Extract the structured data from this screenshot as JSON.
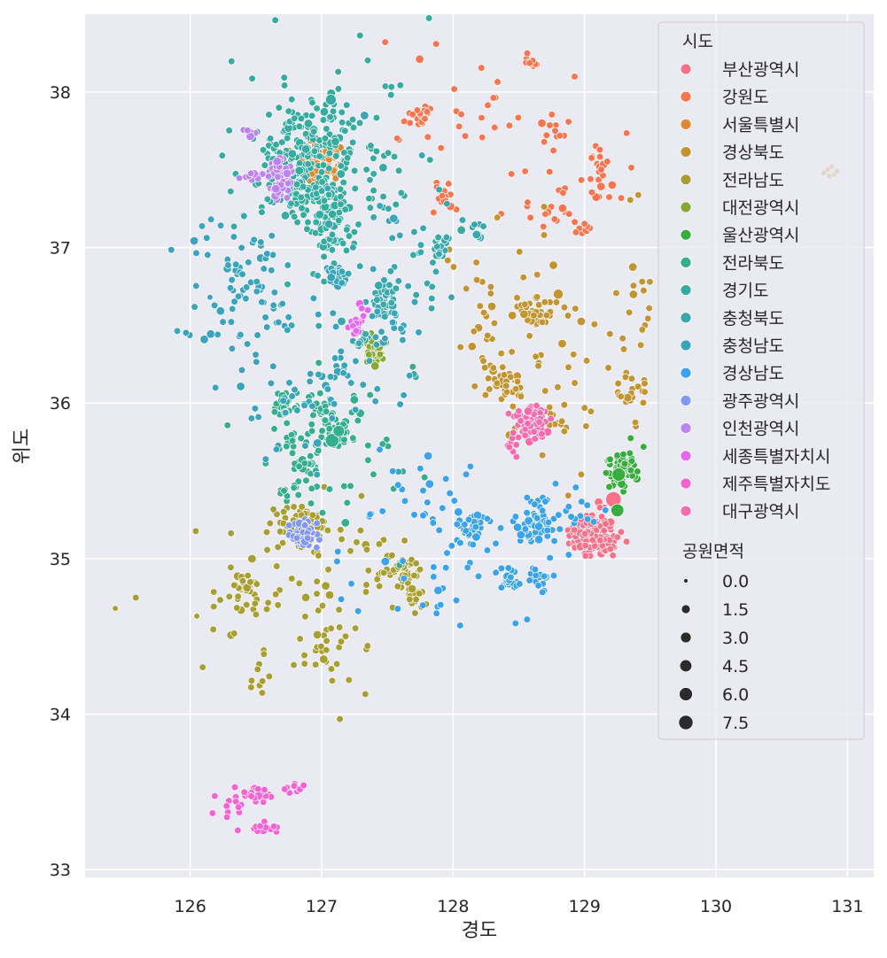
{
  "chart_data": {
    "type": "scatter",
    "title": "",
    "xlabel": "경도",
    "ylabel": "위도",
    "xlim": [
      125.2,
      131.2
    ],
    "ylim": [
      32.95,
      38.5
    ],
    "x_ticks": [
      126,
      127,
      128,
      129,
      130,
      131
    ],
    "y_ticks": [
      33,
      34,
      35,
      36,
      37,
      38
    ],
    "grid": true,
    "legend_position": "top-right",
    "hue": {
      "title": "시도",
      "entries": [
        {
          "name": "부산광역시",
          "color": "#f77189"
        },
        {
          "name": "강원도",
          "color": "#f7754f"
        },
        {
          "name": "서울특별시",
          "color": "#dc8932"
        },
        {
          "name": "경상북도",
          "color": "#c39532"
        },
        {
          "name": "전라남도",
          "color": "#a89f32"
        },
        {
          "name": "대전광역시",
          "color": "#86a932"
        },
        {
          "name": "울산광역시",
          "color": "#36ad3d"
        },
        {
          "name": "전라북도",
          "color": "#34ae8e"
        },
        {
          "name": "경기도",
          "color": "#36ab9f"
        },
        {
          "name": "충청북도",
          "color": "#38a8ad"
        },
        {
          "name": "충청남도",
          "color": "#39a4bb"
        },
        {
          "name": "경상남도",
          "color": "#3ba3ec"
        },
        {
          "name": "광주광역시",
          "color": "#8197f4"
        },
        {
          "name": "인천광역시",
          "color": "#bb83f4"
        },
        {
          "name": "세종특별자치시",
          "color": "#e866f4"
        },
        {
          "name": "제주특별자치도",
          "color": "#f563d3"
        },
        {
          "name": "대구광역시",
          "color": "#f66bad"
        }
      ]
    },
    "size": {
      "title": "공원면적",
      "values": [
        "0.0",
        "1.5",
        "3.0",
        "4.5",
        "6.0",
        "7.5"
      ]
    },
    "series": [
      {
        "name": "부산광역시",
        "clusters": [
          {
            "x": 129.07,
            "y": 35.16,
            "sx": 0.09,
            "sy": 0.07,
            "n": 150
          }
        ],
        "large": [
          {
            "x": 129.22,
            "y": 35.38,
            "size": 7.5
          }
        ]
      },
      {
        "name": "강원도",
        "clusters": [
          {
            "x": 128.6,
            "y": 38.19,
            "sx": 0.03,
            "sy": 0.02,
            "n": 12
          },
          {
            "x": 127.75,
            "y": 37.87,
            "sx": 0.05,
            "sy": 0.03,
            "n": 20
          },
          {
            "x": 129.1,
            "y": 37.5,
            "sx": 0.05,
            "sy": 0.08,
            "n": 20
          },
          {
            "x": 128.3,
            "y": 37.8,
            "sx": 0.4,
            "sy": 0.3,
            "n": 35
          },
          {
            "x": 128.8,
            "y": 37.25,
            "sx": 0.15,
            "sy": 0.05,
            "n": 18
          },
          {
            "x": 129.0,
            "y": 37.13,
            "sx": 0.04,
            "sy": 0.04,
            "n": 8
          },
          {
            "x": 127.95,
            "y": 37.33,
            "sx": 0.05,
            "sy": 0.05,
            "n": 12
          },
          {
            "x": 128.8,
            "y": 37.75,
            "sx": 0.04,
            "sy": 0.06,
            "n": 10
          }
        ],
        "large": []
      },
      {
        "name": "서울특별시",
        "clusters": [
          {
            "x": 126.98,
            "y": 37.55,
            "sx": 0.08,
            "sy": 0.05,
            "n": 170
          }
        ],
        "large": []
      },
      {
        "name": "경상북도",
        "clusters": [
          {
            "x": 128.62,
            "y": 36.58,
            "sx": 0.08,
            "sy": 0.05,
            "n": 35
          },
          {
            "x": 128.4,
            "y": 36.12,
            "sx": 0.06,
            "sy": 0.06,
            "n": 30
          },
          {
            "x": 129.35,
            "y": 36.05,
            "sx": 0.05,
            "sy": 0.05,
            "n": 18
          },
          {
            "x": 128.8,
            "y": 35.85,
            "sx": 0.08,
            "sy": 0.06,
            "n": 15
          },
          {
            "x": 128.6,
            "y": 36.5,
            "sx": 0.4,
            "sy": 0.4,
            "n": 60
          },
          {
            "x": 129.4,
            "y": 36.5,
            "sx": 0.05,
            "sy": 0.4,
            "n": 20
          },
          {
            "x": 128.2,
            "y": 36.4,
            "sx": 0.15,
            "sy": 0.2,
            "n": 15
          }
        ],
        "large": [
          {
            "x": 128.8,
            "y": 36.7,
            "size": 1.5
          }
        ]
      },
      {
        "name": "전라남도",
        "clusters": [
          {
            "x": 126.85,
            "y": 35.22,
            "sx": 0.13,
            "sy": 0.07,
            "n": 60
          },
          {
            "x": 127.6,
            "y": 34.93,
            "sx": 0.08,
            "sy": 0.05,
            "n": 40
          },
          {
            "x": 127.7,
            "y": 34.76,
            "sx": 0.06,
            "sy": 0.04,
            "n": 20
          },
          {
            "x": 126.4,
            "y": 34.8,
            "sx": 0.08,
            "sy": 0.05,
            "n": 30
          },
          {
            "x": 127.05,
            "y": 34.45,
            "sx": 0.1,
            "sy": 0.08,
            "n": 20
          },
          {
            "x": 126.7,
            "y": 34.7,
            "sx": 0.4,
            "sy": 0.3,
            "n": 50
          },
          {
            "x": 127.3,
            "y": 35.0,
            "sx": 0.25,
            "sy": 0.25,
            "n": 25
          },
          {
            "x": 126.55,
            "y": 34.25,
            "sx": 0.05,
            "sy": 0.08,
            "n": 8
          }
        ],
        "large": []
      },
      {
        "name": "대전광역시",
        "clusters": [
          {
            "x": 127.4,
            "y": 36.34,
            "sx": 0.04,
            "sy": 0.05,
            "n": 45
          }
        ],
        "large": []
      },
      {
        "name": "울산광역시",
        "clusters": [
          {
            "x": 129.3,
            "y": 35.55,
            "sx": 0.06,
            "sy": 0.07,
            "n": 55
          },
          {
            "x": 129.3,
            "y": 35.65,
            "sx": 0.05,
            "sy": 0.04,
            "n": 15
          }
        ],
        "large": [
          {
            "x": 129.26,
            "y": 35.54,
            "size": 4.5
          },
          {
            "x": 129.25,
            "y": 35.31,
            "size": 4.0
          }
        ]
      },
      {
        "name": "전라북도",
        "clusters": [
          {
            "x": 127.1,
            "y": 35.82,
            "sx": 0.06,
            "sy": 0.05,
            "n": 40
          },
          {
            "x": 126.72,
            "y": 35.97,
            "sx": 0.05,
            "sy": 0.04,
            "n": 30
          },
          {
            "x": 126.98,
            "y": 35.97,
            "sx": 0.05,
            "sy": 0.04,
            "n": 25
          },
          {
            "x": 126.88,
            "y": 35.6,
            "sx": 0.05,
            "sy": 0.05,
            "n": 15
          },
          {
            "x": 127.1,
            "y": 35.6,
            "sx": 0.35,
            "sy": 0.25,
            "n": 50
          },
          {
            "x": 126.72,
            "y": 35.42,
            "sx": 0.05,
            "sy": 0.03,
            "n": 10
          },
          {
            "x": 126.75,
            "y": 35.75,
            "sx": 0.05,
            "sy": 0.04,
            "n": 12
          }
        ],
        "large": [
          {
            "x": 127.08,
            "y": 35.76,
            "size": 5.0
          },
          {
            "x": 127.13,
            "y": 35.82,
            "size": 2.5
          }
        ]
      },
      {
        "name": "경기도",
        "clusters": [
          {
            "x": 126.9,
            "y": 37.6,
            "sx": 0.2,
            "sy": 0.13,
            "n": 150
          },
          {
            "x": 127.05,
            "y": 37.2,
            "sx": 0.08,
            "sy": 0.15,
            "n": 90
          },
          {
            "x": 126.8,
            "y": 37.35,
            "sx": 0.1,
            "sy": 0.08,
            "n": 50
          },
          {
            "x": 127.1,
            "y": 37.5,
            "sx": 0.4,
            "sy": 0.35,
            "n": 70
          },
          {
            "x": 126.9,
            "y": 37.9,
            "sx": 0.15,
            "sy": 0.1,
            "n": 25
          }
        ],
        "large": [
          {
            "x": 127.07,
            "y": 37.95,
            "size": 2.0
          }
        ]
      },
      {
        "name": "충청북도",
        "clusters": [
          {
            "x": 127.48,
            "y": 36.64,
            "sx": 0.05,
            "sy": 0.05,
            "n": 55
          },
          {
            "x": 127.9,
            "y": 36.98,
            "sx": 0.05,
            "sy": 0.05,
            "n": 18
          },
          {
            "x": 127.3,
            "y": 36.4,
            "sx": 0.04,
            "sy": 0.04,
            "n": 15
          },
          {
            "x": 127.6,
            "y": 36.8,
            "sx": 0.3,
            "sy": 0.3,
            "n": 45
          },
          {
            "x": 128.15,
            "y": 37.12,
            "sx": 0.04,
            "sy": 0.03,
            "n": 8
          }
        ],
        "large": []
      },
      {
        "name": "충청남도",
        "clusters": [
          {
            "x": 126.5,
            "y": 36.6,
            "sx": 0.3,
            "sy": 0.3,
            "n": 70
          },
          {
            "x": 127.12,
            "y": 36.81,
            "sx": 0.05,
            "sy": 0.04,
            "n": 25
          },
          {
            "x": 126.85,
            "y": 36.0,
            "sx": 0.25,
            "sy": 0.2,
            "n": 25
          },
          {
            "x": 127.5,
            "y": 36.4,
            "sx": 0.15,
            "sy": 0.4,
            "n": 25
          },
          {
            "x": 126.4,
            "y": 36.9,
            "sx": 0.15,
            "sy": 0.12,
            "n": 25
          },
          {
            "x": 127.15,
            "y": 36.2,
            "sx": 0.1,
            "sy": 0.1,
            "n": 15
          }
        ],
        "large": []
      },
      {
        "name": "경상남도",
        "clusters": [
          {
            "x": 128.65,
            "y": 35.22,
            "sx": 0.08,
            "sy": 0.06,
            "n": 60
          },
          {
            "x": 128.15,
            "y": 35.18,
            "sx": 0.07,
            "sy": 0.05,
            "n": 35
          },
          {
            "x": 128.45,
            "y": 34.87,
            "sx": 0.05,
            "sy": 0.04,
            "n": 20
          },
          {
            "x": 128.65,
            "y": 34.87,
            "sx": 0.05,
            "sy": 0.03,
            "n": 15
          },
          {
            "x": 128.0,
            "y": 35.1,
            "sx": 0.35,
            "sy": 0.3,
            "n": 60
          },
          {
            "x": 128.9,
            "y": 35.3,
            "sx": 0.12,
            "sy": 0.1,
            "n": 20
          },
          {
            "x": 127.8,
            "y": 35.4,
            "sx": 0.2,
            "sy": 0.15,
            "n": 15
          }
        ],
        "large": []
      },
      {
        "name": "광주광역시",
        "clusters": [
          {
            "x": 126.86,
            "y": 35.15,
            "sx": 0.05,
            "sy": 0.04,
            "n": 90
          }
        ],
        "large": []
      },
      {
        "name": "인천광역시",
        "clusters": [
          {
            "x": 126.68,
            "y": 37.46,
            "sx": 0.04,
            "sy": 0.06,
            "n": 75
          },
          {
            "x": 126.47,
            "y": 37.48,
            "sx": 0.04,
            "sy": 0.03,
            "n": 10
          },
          {
            "x": 126.45,
            "y": 37.73,
            "sx": 0.03,
            "sy": 0.02,
            "n": 5
          }
        ],
        "large": []
      },
      {
        "name": "세종특별자치시",
        "clusters": [
          {
            "x": 127.27,
            "y": 36.5,
            "sx": 0.02,
            "sy": 0.03,
            "n": 18
          },
          {
            "x": 127.32,
            "y": 36.6,
            "sx": 0.02,
            "sy": 0.02,
            "n": 4
          }
        ],
        "large": []
      },
      {
        "name": "제주특별자치도",
        "clusters": [
          {
            "x": 126.52,
            "y": 33.48,
            "sx": 0.06,
            "sy": 0.03,
            "n": 28
          },
          {
            "x": 126.3,
            "y": 33.38,
            "sx": 0.06,
            "sy": 0.06,
            "n": 10
          },
          {
            "x": 126.56,
            "y": 33.26,
            "sx": 0.06,
            "sy": 0.02,
            "n": 14
          },
          {
            "x": 126.8,
            "y": 33.52,
            "sx": 0.07,
            "sy": 0.02,
            "n": 10
          }
        ],
        "large": []
      },
      {
        "name": "대구광역시",
        "clusters": [
          {
            "x": 128.6,
            "y": 35.87,
            "sx": 0.06,
            "sy": 0.05,
            "n": 90
          },
          {
            "x": 128.45,
            "y": 35.7,
            "sx": 0.03,
            "sy": 0.06,
            "n": 10
          }
        ],
        "large": []
      }
    ],
    "outliers": [
      {
        "series": "경상북도",
        "points": [
          [
            130.85,
            37.5
          ],
          [
            130.9,
            37.47
          ],
          [
            130.82,
            37.48
          ],
          [
            130.88,
            37.52
          ],
          [
            130.92,
            37.49
          ],
          [
            130.86,
            37.46
          ]
        ]
      },
      {
        "series": "전라남도",
        "points": [
          [
            125.43,
            34.68
          ],
          [
            126.05,
            34.63
          ]
        ]
      },
      {
        "series": "충청남도",
        "points": [
          [
            126.15,
            36.68
          ]
        ]
      }
    ]
  }
}
